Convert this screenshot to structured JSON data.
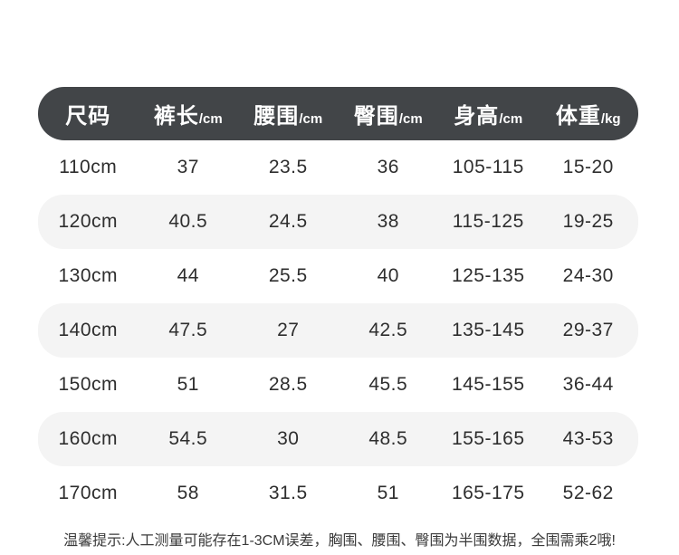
{
  "chart_data": {
    "type": "table",
    "title": "",
    "headers": [
      {
        "label": "尺码",
        "unit": ""
      },
      {
        "label": "裤长",
        "unit": "/cm"
      },
      {
        "label": "腰围",
        "unit": "/cm"
      },
      {
        "label": "臀围",
        "unit": "/cm"
      },
      {
        "label": "身高",
        "unit": "/cm"
      },
      {
        "label": "体重",
        "unit": "/kg"
      }
    ],
    "rows": [
      [
        "110cm",
        "37",
        "23.5",
        "36",
        "105-115",
        "15-20"
      ],
      [
        "120cm",
        "40.5",
        "24.5",
        "38",
        "115-125",
        "19-25"
      ],
      [
        "130cm",
        "44",
        "25.5",
        "40",
        "125-135",
        "24-30"
      ],
      [
        "140cm",
        "47.5",
        "27",
        "42.5",
        "135-145",
        "29-37"
      ],
      [
        "150cm",
        "51",
        "28.5",
        "45.5",
        "145-155",
        "36-44"
      ],
      [
        "160cm",
        "54.5",
        "30",
        "48.5",
        "155-165",
        "43-53"
      ],
      [
        "170cm",
        "58",
        "31.5",
        "51",
        "165-175",
        "52-62"
      ]
    ]
  },
  "note": "温馨提示:人工测量可能存在1-3CM误差，胸围、腰围、臀围为半围数据，全围需乘2哦!",
  "colors": {
    "header_bg": "#424548",
    "header_text": "#ffffff",
    "row_alt_bg": "#f4f4f4",
    "cell_text": "#2e2e2e",
    "note_text": "#3a3a3a"
  }
}
